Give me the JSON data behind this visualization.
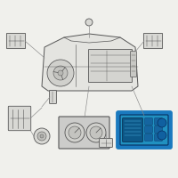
{
  "bg_color": "#f0f0ec",
  "line_color": "#888888",
  "dark_outline": "#555555",
  "component_fill": "#d8d8d4",
  "dash_fill": "#e4e4e0",
  "highlight_outer": "#1a7abf",
  "highlight_fill": "#2090c0",
  "highlight_btn": "#1565a0",
  "highlight_screen": "#0d5888",
  "fig_width": 2.0,
  "fig_height": 2.0,
  "dpi": 100
}
